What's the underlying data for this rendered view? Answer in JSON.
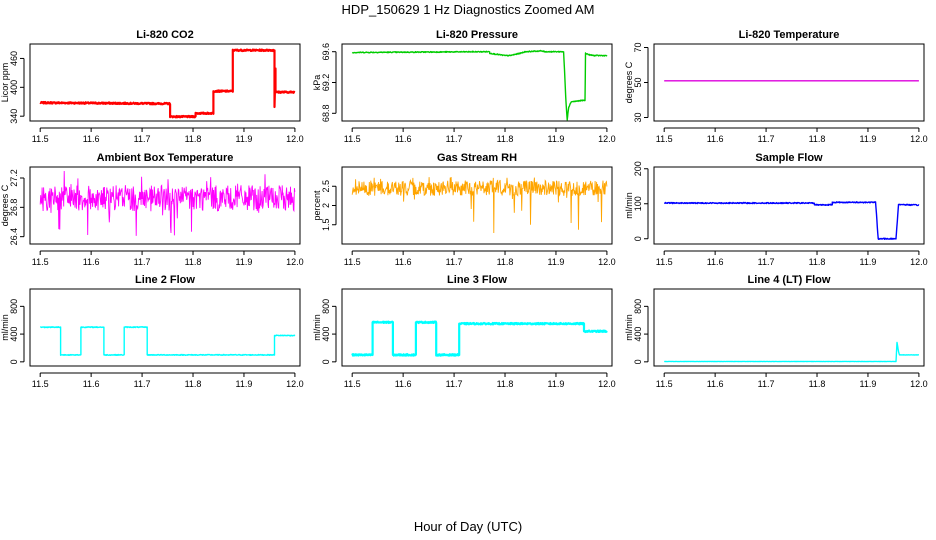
{
  "figure": {
    "title": "HDP_150629  1 Hz Diagnostics Zoomed AM",
    "xlabel": "Hour of Day (UTC)"
  },
  "chart_data": [
    {
      "type": "line",
      "title": "Li-820 CO2",
      "ylabel": "Licor ppm",
      "color": "#ff0000",
      "xlim": [
        11.48,
        12.01
      ],
      "ylim": [
        330,
        490
      ],
      "xticks": [
        11.5,
        11.6,
        11.7,
        11.8,
        11.9,
        12.0
      ],
      "xtick_labels": [
        "11.5",
        "11.6",
        "11.7",
        "11.8",
        "11.9",
        "12.0"
      ],
      "yticks": [
        340,
        400,
        460
      ],
      "ytick_labels": [
        "340",
        "400",
        "460"
      ],
      "x": [
        11.5,
        11.755,
        11.755,
        11.805,
        11.805,
        11.84,
        11.84,
        11.878,
        11.878,
        11.96,
        11.96,
        11.962,
        11.962,
        11.97,
        11.97,
        12.0
      ],
      "y": [
        368,
        366,
        339,
        339,
        346,
        346,
        392,
        392,
        477,
        477,
        359,
        440,
        390,
        390,
        390,
        390
      ],
      "noise": 1.5
    },
    {
      "type": "line",
      "title": "Li-820 Pressure",
      "ylabel": "kPa",
      "color": "#00cc00",
      "xlim": [
        11.48,
        12.01
      ],
      "ylim": [
        68.7,
        69.7
      ],
      "xticks": [
        11.5,
        11.6,
        11.7,
        11.8,
        11.9,
        12.0
      ],
      "xtick_labels": [
        "11.5",
        "11.6",
        "11.7",
        "11.8",
        "11.9",
        "12.0"
      ],
      "yticks": [
        68.8,
        69.2,
        69.6
      ],
      "ytick_labels": [
        "68.8",
        "69.2",
        "69.6"
      ],
      "x": [
        11.5,
        11.77,
        11.77,
        11.8,
        11.81,
        11.83,
        11.84,
        11.87,
        11.88,
        11.915,
        11.92,
        11.922,
        11.925,
        11.93,
        11.957,
        11.958,
        11.965,
        11.975,
        12.0
      ],
      "y": [
        69.59,
        69.6,
        69.58,
        69.55,
        69.55,
        69.58,
        69.6,
        69.61,
        69.6,
        69.6,
        68.9,
        68.72,
        68.88,
        68.95,
        68.97,
        69.58,
        69.56,
        69.55,
        69.55
      ],
      "noise": 0.006
    },
    {
      "type": "line",
      "title": "Li-820 Temperature",
      "ylabel": "degrees C",
      "color": "#dd00dd",
      "xlim": [
        11.48,
        12.01
      ],
      "ylim": [
        28,
        72
      ],
      "xticks": [
        11.5,
        11.6,
        11.7,
        11.8,
        11.9,
        12.0
      ],
      "xtick_labels": [
        "11.5",
        "11.6",
        "11.7",
        "11.8",
        "11.9",
        "12.0"
      ],
      "yticks": [
        30,
        50,
        70
      ],
      "ytick_labels": [
        "30",
        "50",
        "70"
      ],
      "x": [
        11.5,
        12.0
      ],
      "y": [
        51,
        51
      ],
      "noise": 0
    },
    {
      "type": "line",
      "title": "Ambient Box Temperature",
      "ylabel": "degrees C",
      "color": "#ff00ff",
      "xlim": [
        11.48,
        12.01
      ],
      "ylim": [
        26.3,
        27.35
      ],
      "xticks": [
        11.5,
        11.6,
        11.7,
        11.8,
        11.9,
        12.0
      ],
      "xtick_labels": [
        "11.5",
        "11.6",
        "11.7",
        "11.8",
        "11.9",
        "12.0"
      ],
      "yticks": [
        26.4,
        26.8,
        27.2
      ],
      "ytick_labels": [
        "26.4",
        "26.8",
        "27.2"
      ],
      "x": [
        11.5,
        12.0
      ],
      "y": [
        26.9,
        26.9
      ],
      "band": [
        26.75,
        27.1
      ],
      "spike_low": 26.38,
      "spike_high": 27.3,
      "band_density": 0.9
    },
    {
      "type": "line",
      "title": "Gas Stream RH",
      "ylabel": "percent",
      "color": "#ffa500",
      "xlim": [
        11.48,
        12.01
      ],
      "ylim": [
        1.0,
        3.0
      ],
      "xticks": [
        11.5,
        11.6,
        11.7,
        11.8,
        11.9,
        12.0
      ],
      "xtick_labels": [
        "11.5",
        "11.6",
        "11.7",
        "11.8",
        "11.9",
        "12.0"
      ],
      "yticks": [
        1.5,
        2.0,
        2.5
      ],
      "ytick_labels": [
        "1.5",
        "2",
        "2.5"
      ],
      "x": [
        11.5,
        12.0
      ],
      "y": [
        2.5,
        2.5
      ],
      "band": [
        2.25,
        2.65
      ],
      "spike_low": 1.15,
      "spike_high": 2.75,
      "band_density": 0.6
    },
    {
      "type": "line",
      "title": "Sample Flow",
      "ylabel": "ml/min",
      "color": "#0000ff",
      "xlim": [
        11.48,
        12.01
      ],
      "ylim": [
        -15,
        205
      ],
      "xticks": [
        11.5,
        11.6,
        11.7,
        11.8,
        11.9,
        12.0
      ],
      "xtick_labels": [
        "11.5",
        "11.6",
        "11.7",
        "11.8",
        "11.9",
        "12.0"
      ],
      "yticks": [
        0,
        100,
        200
      ],
      "ytick_labels": [
        "0",
        "100",
        "200"
      ],
      "x": [
        11.5,
        11.795,
        11.795,
        11.83,
        11.83,
        11.915,
        11.92,
        11.955,
        11.96,
        12.0
      ],
      "y": [
        102,
        102,
        97,
        97,
        104,
        104,
        0,
        0,
        98,
        96
      ],
      "noise": 1.5
    },
    {
      "type": "line",
      "title": "Line 2 Flow",
      "ylabel": "ml/min",
      "color": "#00ffff",
      "xlim": [
        11.48,
        12.01
      ],
      "ylim": [
        -60,
        1050
      ],
      "xticks": [
        11.5,
        11.6,
        11.7,
        11.8,
        11.9,
        12.0
      ],
      "xtick_labels": [
        "11.5",
        "11.6",
        "11.7",
        "11.8",
        "11.9",
        "12.0"
      ],
      "yticks": [
        0,
        400,
        800
      ],
      "ytick_labels": [
        "0",
        "400",
        "800"
      ],
      "x": [
        11.5,
        11.54,
        11.54,
        11.58,
        11.58,
        11.625,
        11.625,
        11.665,
        11.665,
        11.71,
        11.71,
        11.96,
        11.96,
        12.0
      ],
      "y": [
        500,
        500,
        100,
        100,
        500,
        500,
        100,
        100,
        500,
        500,
        100,
        100,
        380,
        380
      ],
      "noise": 6
    },
    {
      "type": "line",
      "title": "Line 3 Flow",
      "ylabel": "ml/min",
      "color": "#00ffff",
      "xlim": [
        11.48,
        12.01
      ],
      "ylim": [
        -60,
        1050
      ],
      "xticks": [
        11.5,
        11.6,
        11.7,
        11.8,
        11.9,
        12.0
      ],
      "xtick_labels": [
        "11.5",
        "11.6",
        "11.7",
        "11.8",
        "11.9",
        "12.0"
      ],
      "yticks": [
        0,
        400,
        800
      ],
      "ytick_labels": [
        "0",
        "400",
        "800"
      ],
      "x": [
        11.5,
        11.54,
        11.54,
        11.58,
        11.58,
        11.625,
        11.625,
        11.665,
        11.665,
        11.71,
        11.71,
        11.955,
        11.955,
        12.0
      ],
      "y": [
        100,
        100,
        570,
        570,
        100,
        100,
        570,
        570,
        100,
        100,
        550,
        550,
        440,
        440
      ],
      "noise": 10
    },
    {
      "type": "line",
      "title": "Line 4 (LT) Flow",
      "ylabel": "ml/min",
      "color": "#00ffff",
      "xlim": [
        11.48,
        12.01
      ],
      "ylim": [
        -60,
        1050
      ],
      "xticks": [
        11.5,
        11.6,
        11.7,
        11.8,
        11.9,
        12.0
      ],
      "xtick_labels": [
        "11.5",
        "11.6",
        "11.7",
        "11.8",
        "11.9",
        "12.0"
      ],
      "yticks": [
        0,
        400,
        800
      ],
      "ytick_labels": [
        "0",
        "400",
        "800"
      ],
      "x": [
        11.5,
        11.955,
        11.957,
        11.96,
        11.962,
        11.97,
        12.0
      ],
      "y": [
        5,
        5,
        280,
        150,
        100,
        100,
        100
      ],
      "noise": 2
    }
  ]
}
